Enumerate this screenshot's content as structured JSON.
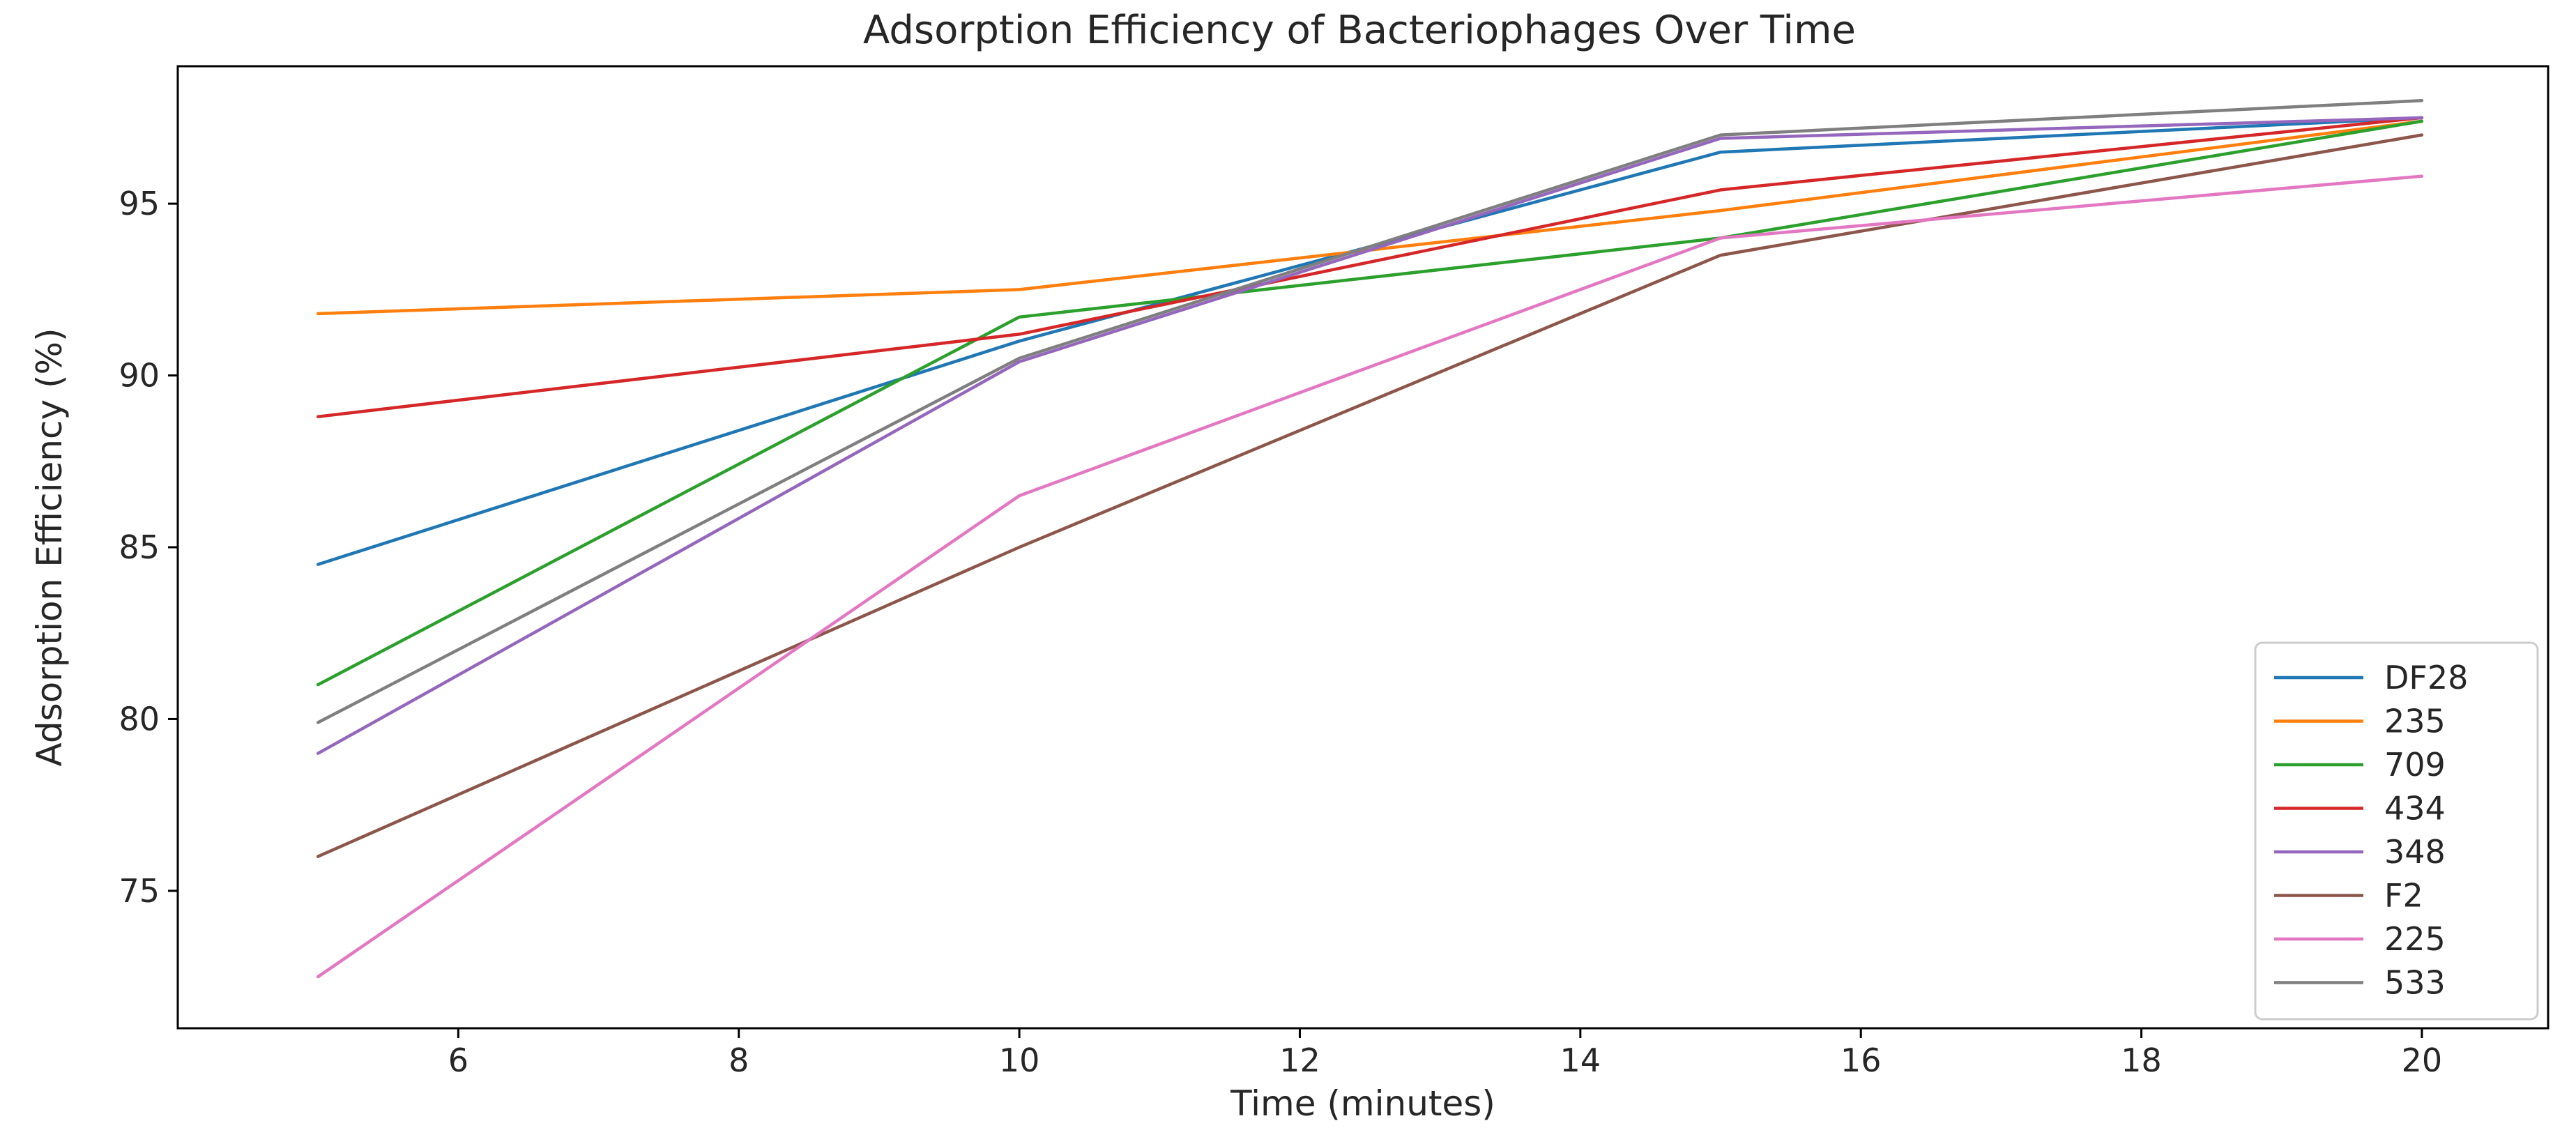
{
  "chart_data": {
    "type": "line",
    "title": "Adsorption Efficiency of Bacteriophages Over Time",
    "xlabel": "Time (minutes)",
    "ylabel": "Adsorption Efficiency (%)",
    "x": [
      5,
      10,
      15,
      20
    ],
    "xlim": [
      4,
      20.9
    ],
    "ylim": [
      71,
      99
    ],
    "xticks": [
      6,
      8,
      10,
      12,
      14,
      16,
      18,
      20
    ],
    "yticks": [
      75,
      80,
      85,
      90,
      95
    ],
    "grid": false,
    "legend_position": "bottom-right",
    "series": [
      {
        "name": "DF28",
        "color": "#1f77b4",
        "values": [
          84.5,
          91.0,
          96.5,
          97.5
        ]
      },
      {
        "name": "235",
        "color": "#ff7f0e",
        "values": [
          91.8,
          92.5,
          94.8,
          97.4
        ]
      },
      {
        "name": "709",
        "color": "#2ca02c",
        "values": [
          81.0,
          91.7,
          94.0,
          97.4
        ]
      },
      {
        "name": "434",
        "color": "#d62728",
        "values": [
          88.8,
          91.2,
          95.4,
          97.5
        ]
      },
      {
        "name": "348",
        "color": "#9467bd",
        "values": [
          79.0,
          90.4,
          96.9,
          97.5
        ]
      },
      {
        "name": "F2",
        "color": "#8c564b",
        "values": [
          76.0,
          85.0,
          93.5,
          97.0
        ]
      },
      {
        "name": "225",
        "color": "#e377c2",
        "values": [
          72.5,
          86.5,
          94.0,
          95.8
        ]
      },
      {
        "name": "533",
        "color": "#7f7f7f",
        "values": [
          79.9,
          90.5,
          97.0,
          98.0
        ]
      }
    ]
  }
}
